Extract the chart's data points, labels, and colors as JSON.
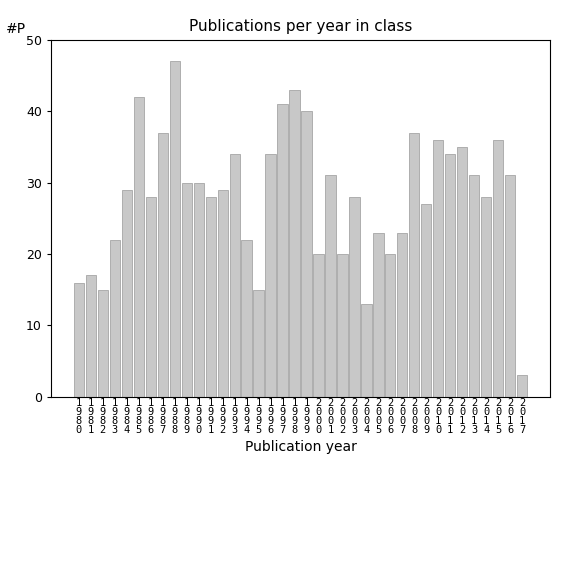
{
  "title": "Publications per year in class",
  "xlabel": "Publication year",
  "ylabel": "#P",
  "ylim": [
    0,
    50
  ],
  "yticks": [
    0,
    10,
    20,
    30,
    40,
    50
  ],
  "bar_color": "#c8c8c8",
  "bar_edgecolor": "#999999",
  "categories": [
    "1980",
    "1981",
    "1982",
    "1983",
    "1984",
    "1985",
    "1986",
    "1987",
    "1988",
    "1989",
    "1990",
    "1991",
    "1992",
    "1993",
    "1994",
    "1995",
    "1996",
    "1997",
    "1998",
    "1999",
    "2000",
    "2001",
    "2002",
    "2003",
    "2004",
    "2005",
    "2006",
    "2007",
    "2008",
    "2009",
    "2010",
    "2011",
    "2012",
    "2013",
    "2014",
    "2015",
    "2016",
    "2017"
  ],
  "values": [
    16,
    17,
    15,
    22,
    29,
    42,
    28,
    37,
    47,
    30,
    30,
    28,
    29,
    34,
    22,
    15,
    34,
    41,
    43,
    40,
    20,
    31,
    20,
    28,
    13,
    23,
    20,
    23,
    37,
    27,
    36,
    34,
    35,
    31,
    28,
    36,
    31,
    3
  ]
}
